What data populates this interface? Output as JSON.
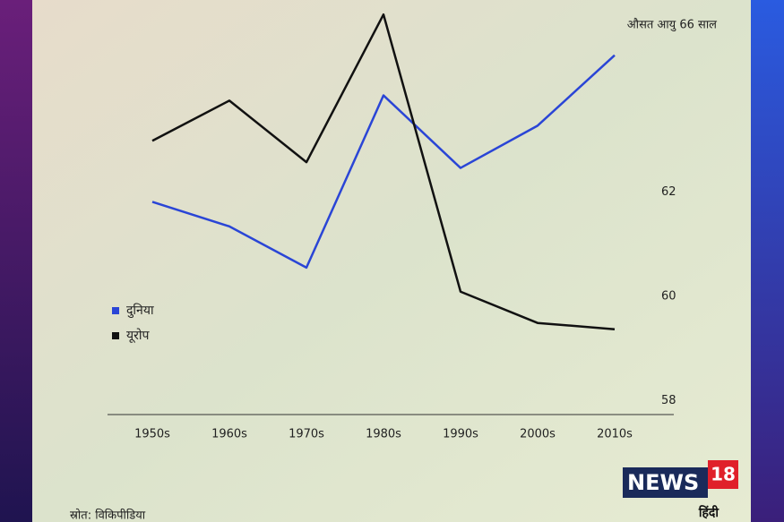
{
  "chart_data": {
    "type": "line",
    "title": "औसत आयु 66 साल",
    "categories": [
      "1950s",
      "1960s",
      "1970s",
      "1980s",
      "1990s",
      "2000s",
      "2010s"
    ],
    "series": [
      {
        "name": "दुनिया",
        "color": "#2a45d6",
        "values": [
          61.81,
          61.34,
          60.55,
          63.85,
          62.46,
          63.27,
          64.62
        ]
      },
      {
        "name": "यूरोप",
        "color": "#111111",
        "values": [
          62.98,
          63.75,
          62.57,
          65.4,
          60.09,
          59.49,
          59.37
        ]
      }
    ],
    "ylim": [
      57.73,
      65.5
    ],
    "yticks": [
      58,
      60,
      62
    ],
    "legend": "left",
    "source": "स्रोत: विकिपीडिया"
  },
  "brand": {
    "name": "NEWS",
    "number": "18",
    "language": "हिंदी"
  }
}
